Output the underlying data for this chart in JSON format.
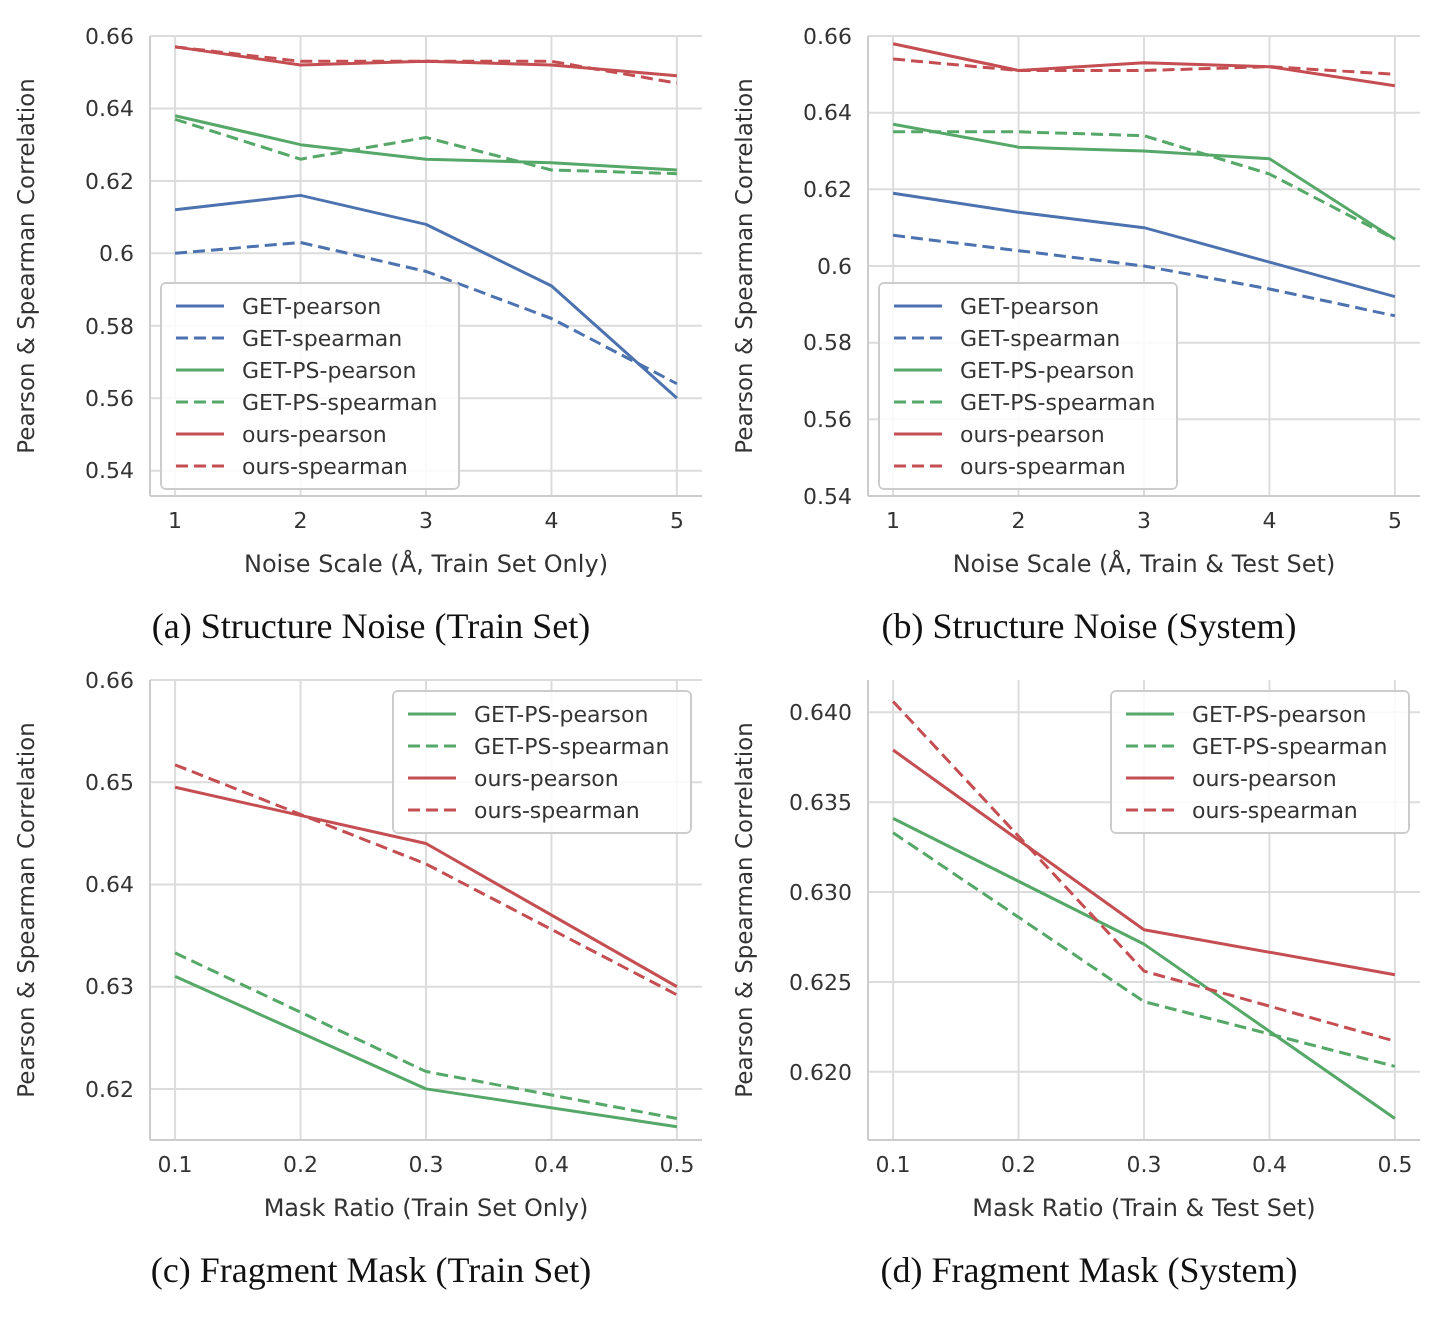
{
  "chart_data": [
    {
      "type": "line",
      "title": "(a) Structure Noise (Train Set)",
      "xlabel": "Noise Scale (Å, Train Set Only)",
      "ylabel": "Pearson & Spearman Correlation",
      "x": [
        1,
        2,
        3,
        4,
        5
      ],
      "xlim": [
        0.8,
        5.2
      ],
      "xticks": [
        1,
        2,
        3,
        4,
        5
      ],
      "ylim": [
        0.533,
        0.66
      ],
      "yticks": [
        0.54,
        0.56,
        0.58,
        0.6,
        0.62,
        0.64,
        0.66
      ],
      "grid": true,
      "legend": "bottom left",
      "series": [
        {
          "name": "GET-pearson",
          "color": "#4c72b0",
          "line_style": "solid",
          "values": [
            0.612,
            0.616,
            0.608,
            0.591,
            0.56
          ]
        },
        {
          "name": "GET-spearman",
          "color": "#4c72b0",
          "line_style": "dashed",
          "values": [
            0.6,
            0.603,
            0.595,
            0.582,
            0.564
          ]
        },
        {
          "name": "GET-PS-pearson",
          "color": "#55a868",
          "line_style": "solid",
          "values": [
            0.638,
            0.63,
            0.626,
            0.625,
            0.623
          ]
        },
        {
          "name": "GET-PS-spearman",
          "color": "#55a868",
          "line_style": "dashed",
          "values": [
            0.637,
            0.626,
            0.632,
            0.623,
            0.622
          ]
        },
        {
          "name": "ours-pearson",
          "color": "#c44e52",
          "line_style": "solid",
          "values": [
            0.657,
            0.652,
            0.653,
            0.652,
            0.649
          ]
        },
        {
          "name": "ours-spearman",
          "color": "#c44e52",
          "line_style": "dashed",
          "values": [
            0.657,
            0.653,
            0.653,
            0.653,
            0.647
          ]
        }
      ]
    },
    {
      "type": "line",
      "title": "(b) Structure Noise (System)",
      "xlabel": "Noise Scale (Å, Train & Test Set)",
      "ylabel": "Pearson & Spearman Correlation",
      "x": [
        1,
        2,
        3,
        4,
        5
      ],
      "xlim": [
        0.8,
        5.2
      ],
      "xticks": [
        1,
        2,
        3,
        4,
        5
      ],
      "ylim": [
        0.54,
        0.66
      ],
      "yticks": [
        0.54,
        0.56,
        0.58,
        0.6,
        0.62,
        0.64,
        0.66
      ],
      "grid": true,
      "legend": "bottom left",
      "series": [
        {
          "name": "GET-pearson",
          "color": "#4c72b0",
          "line_style": "solid",
          "values": [
            0.619,
            0.614,
            0.61,
            0.601,
            0.592
          ]
        },
        {
          "name": "GET-spearman",
          "color": "#4c72b0",
          "line_style": "dashed",
          "values": [
            0.608,
            0.604,
            0.6,
            0.594,
            0.587
          ]
        },
        {
          "name": "GET-PS-pearson",
          "color": "#55a868",
          "line_style": "solid",
          "values": [
            0.637,
            0.631,
            0.63,
            0.628,
            0.607
          ]
        },
        {
          "name": "GET-PS-spearman",
          "color": "#55a868",
          "line_style": "dashed",
          "values": [
            0.635,
            0.635,
            0.634,
            0.624,
            0.607
          ]
        },
        {
          "name": "ours-pearson",
          "color": "#c44e52",
          "line_style": "solid",
          "values": [
            0.658,
            0.651,
            0.653,
            0.652,
            0.647
          ]
        },
        {
          "name": "ours-spearman",
          "color": "#c44e52",
          "line_style": "dashed",
          "values": [
            0.654,
            0.651,
            0.651,
            0.652,
            0.65
          ]
        }
      ]
    },
    {
      "type": "line",
      "title": "(c) Fragment Mask (Train Set)",
      "xlabel": "Mask Ratio (Train Set Only)",
      "ylabel": "Pearson & Spearman Correlation",
      "x": [
        0.1,
        0.3,
        0.5
      ],
      "xlim": [
        0.08,
        0.52
      ],
      "xticks": [
        0.1,
        0.2,
        0.3,
        0.4,
        0.5
      ],
      "ylim": [
        0.615,
        0.66
      ],
      "yticks": [
        0.62,
        0.63,
        0.64,
        0.65,
        0.66
      ],
      "grid": true,
      "legend": "top right",
      "series": [
        {
          "name": "GET-PS-pearson",
          "color": "#55a868",
          "line_style": "solid",
          "values": [
            0.631,
            0.62,
            0.6163
          ]
        },
        {
          "name": "GET-PS-spearman",
          "color": "#55a868",
          "line_style": "dashed",
          "values": [
            0.6333,
            0.6217,
            0.6171
          ]
        },
        {
          "name": "ours-pearson",
          "color": "#c44e52",
          "line_style": "solid",
          "values": [
            0.6495,
            0.644,
            0.63
          ]
        },
        {
          "name": "ours-spearman",
          "color": "#c44e52",
          "line_style": "dashed",
          "values": [
            0.6517,
            0.642,
            0.6292
          ]
        }
      ]
    },
    {
      "type": "line",
      "title": "(d) Fragment Mask (System)",
      "xlabel": "Mask Ratio (Train & Test Set)",
      "ylabel": "Pearson & Spearman Correlation",
      "x": [
        0.1,
        0.3,
        0.5
      ],
      "xlim": [
        0.08,
        0.52
      ],
      "xticks": [
        0.1,
        0.2,
        0.3,
        0.4,
        0.5
      ],
      "ylim": [
        0.6162,
        0.6418
      ],
      "yticks": [
        {
          "value": 0.62,
          "label": "0.620"
        },
        {
          "value": 0.625,
          "label": "0.625"
        },
        {
          "value": 0.63,
          "label": "0.630"
        },
        {
          "value": 0.635,
          "label": "0.635"
        },
        {
          "value": 0.64,
          "label": "0.640"
        }
      ],
      "grid": true,
      "legend": "top right",
      "series": [
        {
          "name": "GET-PS-pearson",
          "color": "#55a868",
          "line_style": "solid",
          "values": [
            0.6341,
            0.6271,
            0.6174
          ]
        },
        {
          "name": "GET-PS-spearman",
          "color": "#55a868",
          "line_style": "dashed",
          "values": [
            0.6333,
            0.6239,
            0.6203
          ]
        },
        {
          "name": "ours-pearson",
          "color": "#c44e52",
          "line_style": "solid",
          "values": [
            0.6379,
            0.6279,
            0.6254
          ]
        },
        {
          "name": "ours-spearman",
          "color": "#c44e52",
          "line_style": "dashed",
          "values": [
            0.6406,
            0.6256,
            0.6217
          ]
        }
      ]
    }
  ]
}
